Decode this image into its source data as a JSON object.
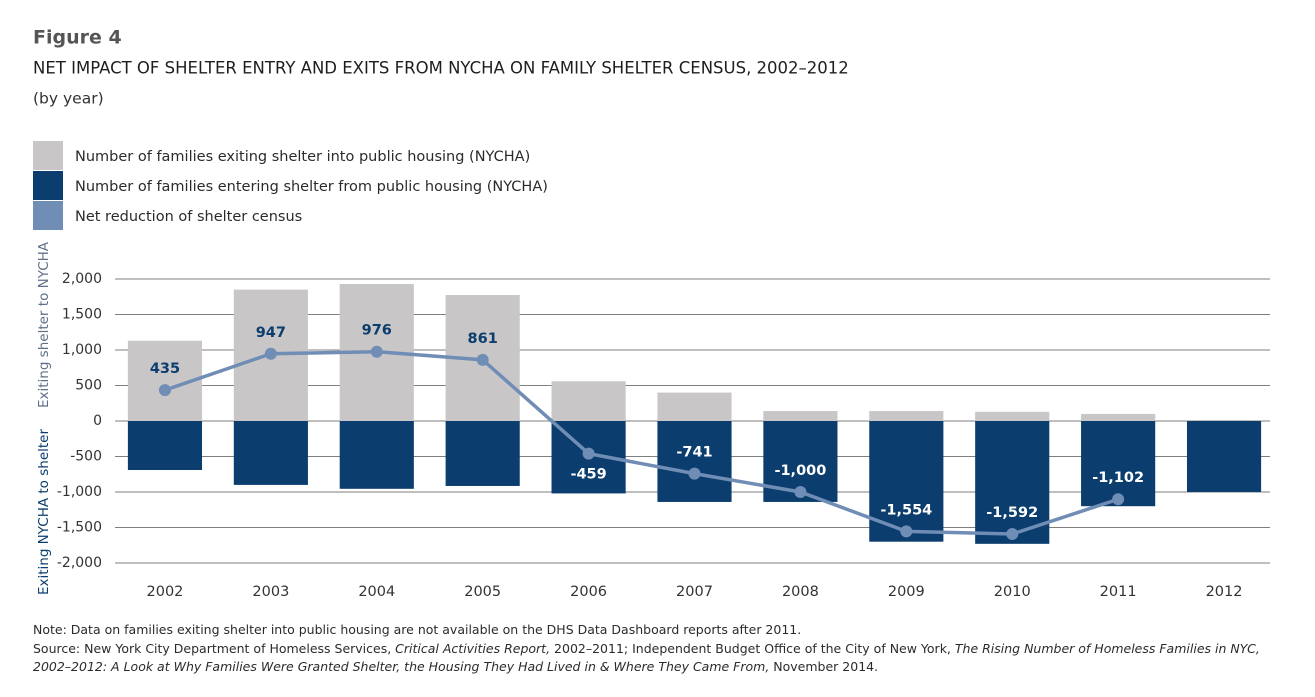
{
  "figure_label": "Figure 4",
  "chart_data": {
    "type": "bar",
    "stacked": true,
    "title": "NET IMPACT OF SHELTER ENTRY AND EXITS FROM NYCHA ON FAMILY SHELTER CENSUS, 2002–2012",
    "subtitle": "(by year)",
    "y_axis_labels": [
      {
        "text": "Exiting shelter to NYCHA",
        "color": "#5f7088"
      },
      {
        "text": "Exiting NYCHA to shelter",
        "color": "#0b3d6e"
      }
    ],
    "categories": [
      "2002",
      "2003",
      "2004",
      "2005",
      "2006",
      "2007",
      "2008",
      "2009",
      "2010",
      "2011",
      "2012"
    ],
    "series": [
      {
        "name": "Number of families exiting shelter into public housing (NYCHA)",
        "color": "#c8c6c6",
        "values": [
          1130,
          1850,
          1930,
          1775,
          560,
          400,
          140,
          140,
          130,
          100,
          null
        ]
      },
      {
        "name": "Number of families entering shelter from public housing (NYCHA)",
        "color": "#0b3d6e",
        "values": [
          -690,
          -900,
          -955,
          -915,
          -1020,
          -1140,
          -1140,
          -1700,
          -1730,
          -1200,
          -1000
        ]
      },
      {
        "name": "Net reduction of shelter census",
        "color": "#6f8db5",
        "type": "line",
        "values": [
          435,
          947,
          976,
          861,
          -459,
          -741,
          -1000,
          -1554,
          -1592,
          -1102,
          null
        ],
        "value_labels": [
          "435",
          "947",
          "976",
          "861",
          "-459",
          "-741",
          "-1,000",
          "-1,554",
          "-1,592",
          "-1,102",
          null
        ]
      }
    ],
    "ylim": [
      -2000,
      2000
    ],
    "yticks": [
      {
        "value": -2000,
        "label": "-2,000"
      },
      {
        "value": -1500,
        "label": "-1,500"
      },
      {
        "value": -1000,
        "label": "-1,000"
      },
      -500,
      0,
      500,
      {
        "value": 1000,
        "label": "1,000"
      },
      {
        "value": 1500,
        "label": "1,500"
      },
      {
        "value": 2000,
        "label": "2,000"
      }
    ],
    "grid": true
  },
  "note": "Note: Data on families exiting shelter into public housing are not available on the DHS Data Dashboard reports after 2011.",
  "source": [
    {
      "text": "Source: New York City Department of Homeless Services, ",
      "italic": false
    },
    {
      "text": "Critical Activities Report,",
      "italic": true
    },
    {
      "text": " 2002–2011; Independent Budget Office of the City of New York, ",
      "italic": false
    },
    {
      "text": "The Rising Number of Homeless Families in NYC, 2002–2012: A Look at Why Families Were Granted Shelter, the Housing They Had Lived in & Where They Came From,",
      "italic": true
    },
    {
      "text": " November 2014.",
      "italic": false
    }
  ]
}
